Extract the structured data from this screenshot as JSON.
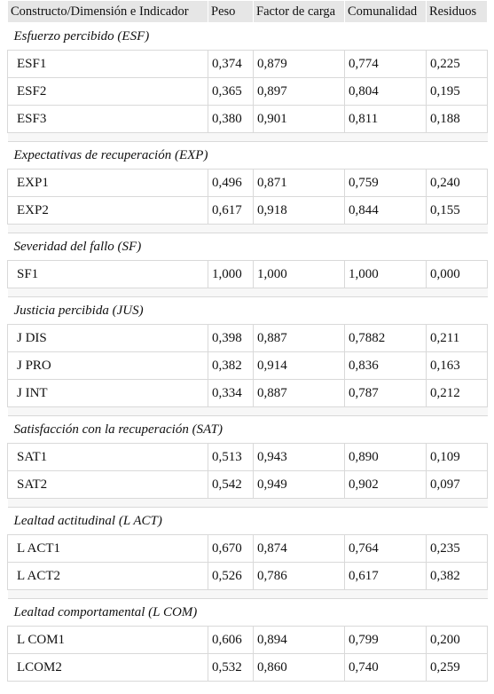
{
  "table": {
    "headers": [
      "Constructo/Dimensión e Indicador",
      "Peso",
      "Factor de carga",
      "Comunalidad",
      "Residuos"
    ],
    "groups": [
      {
        "title": "Esfuerzo percibido (ESF)",
        "rows": [
          [
            "ESF1",
            "0,374",
            "0,879",
            "0,774",
            "0,225"
          ],
          [
            "ESF2",
            "0,365",
            "0,897",
            "0,804",
            "0,195"
          ],
          [
            "ESF3",
            "0,380",
            "0,901",
            "0,811",
            "0,188"
          ]
        ]
      },
      {
        "title": "Expectativas de recuperación (EXP)",
        "rows": [
          [
            "EXP1",
            "0,496",
            "0,871",
            "0,759",
            "0,240"
          ],
          [
            "EXP2",
            "0,617",
            "0,918",
            "0,844",
            "0,155"
          ]
        ]
      },
      {
        "title": "Severidad del fallo (SF)",
        "rows": [
          [
            "SF1",
            "1,000",
            "1,000",
            "1,000",
            "0,000"
          ]
        ]
      },
      {
        "title": "Justicia percibida (JUS)",
        "rows": [
          [
            "J DIS",
            "0,398",
            "0,887",
            "0,7882",
            "0,211"
          ],
          [
            "J PRO",
            "0,382",
            "0,914",
            "0,836",
            "0,163"
          ],
          [
            "J INT",
            "0,334",
            "0,887",
            "0,787",
            "0,212"
          ]
        ]
      },
      {
        "title": "Satisfacción con la recuperación (SAT)",
        "rows": [
          [
            "SAT1",
            "0,513",
            "0,943",
            "0,890",
            "0,109"
          ],
          [
            "SAT2",
            "0,542",
            "0,949",
            "0,902",
            "0,097"
          ]
        ]
      },
      {
        "title": "Lealtad actitudinal (L ACT)",
        "rows": [
          [
            "L ACT1",
            "0,670",
            "0,874",
            "0,764",
            "0,235"
          ],
          [
            "L ACT2",
            "0,526",
            "0,786",
            "0,617",
            "0,382"
          ]
        ]
      },
      {
        "title": "Lealtad comportamental (L COM)",
        "rows": [
          [
            "L COM1",
            "0,606",
            "0,894",
            "0,799",
            "0,200"
          ],
          [
            "LCOM2",
            "0,532",
            "0,860",
            "0,740",
            "0,259"
          ]
        ]
      }
    ]
  }
}
